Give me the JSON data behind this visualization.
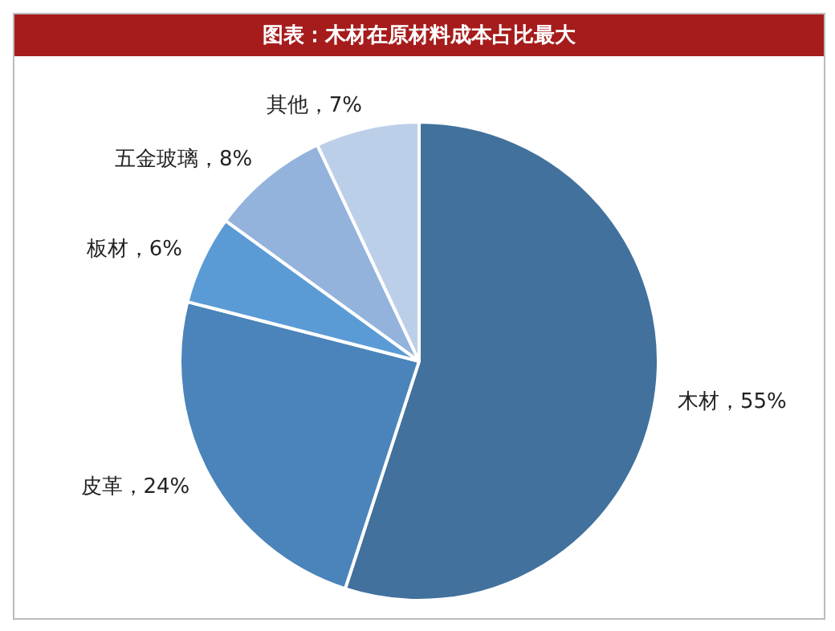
{
  "chart_data": {
    "type": "pie",
    "title": "图表：木材在原材料成本占比最大",
    "categories": [
      "木材",
      "皮革",
      "板材",
      "五金玻璃",
      "其他"
    ],
    "values": [
      55,
      24,
      6,
      8,
      7
    ],
    "value_labels": [
      "55%",
      "24%",
      "6%",
      "8%",
      "7%"
    ],
    "colors": [
      "#41719c",
      "#4a84ba",
      "#5b9bd5",
      "#93b3dc",
      "#bccfe9"
    ],
    "legend": false
  }
}
